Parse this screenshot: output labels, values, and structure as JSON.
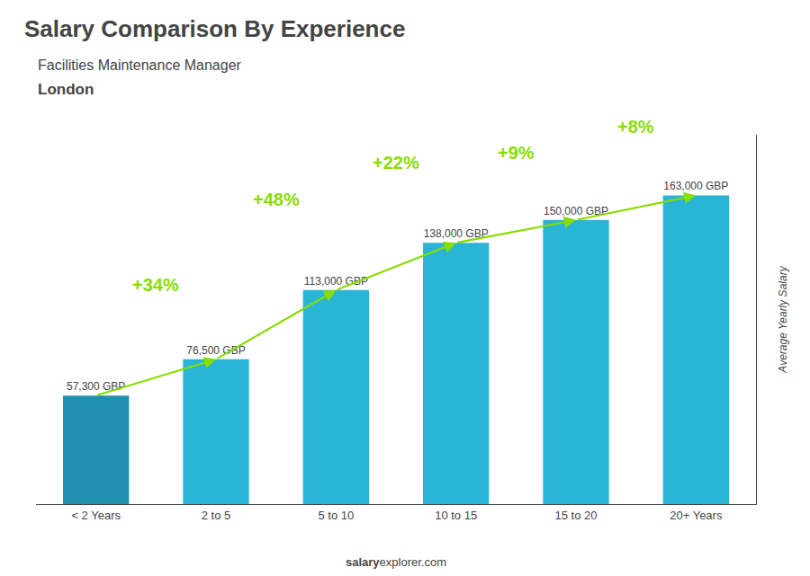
{
  "chart_data": {
    "type": "bar",
    "title": "Salary Comparison By Experience",
    "subtitle": "Facilities Maintenance Manager",
    "city": "London",
    "y_label": "Average Yearly Salary",
    "footer": [
      "salary",
      "explorer.com"
    ],
    "categories": [
      "< 2 Years",
      "2 to 5",
      "5 to 10",
      "10 to 15",
      "15 to 20",
      "20+ Years"
    ],
    "values": [
      57300,
      76500,
      113000,
      138000,
      150000,
      163000
    ],
    "value_labels": [
      "57,300 GBP",
      "76,500 GBP",
      "113,000 GBP",
      "138,000 GBP",
      "150,000 GBP",
      "163,000 GBP"
    ],
    "data_labels": true,
    "colors": [
      "#2090b0",
      "#29b5d5",
      "#29b5d5",
      "#29b5d5",
      "#29b5d5",
      "#29b5d5"
    ],
    "annotations": [
      {
        "from": "< 2 Years",
        "to": "2 to 5",
        "text": "+34%",
        "color": "#88dd00"
      },
      {
        "from": "2 to 5",
        "to": "5 to 10",
        "text": "+48%",
        "color": "#88dd00"
      },
      {
        "from": "5 to 10",
        "to": "10 to 15",
        "text": "+22%",
        "color": "#88dd00"
      },
      {
        "from": "10 to 15",
        "to": "15 to 20",
        "text": "+9%",
        "color": "#88dd00"
      },
      {
        "from": "15 to 20",
        "to": "20+ Years",
        "text": "+8%",
        "color": "#88dd00"
      }
    ],
    "ylim": [
      0,
      195000
    ],
    "tick_labels": "x",
    "grid": false
  }
}
